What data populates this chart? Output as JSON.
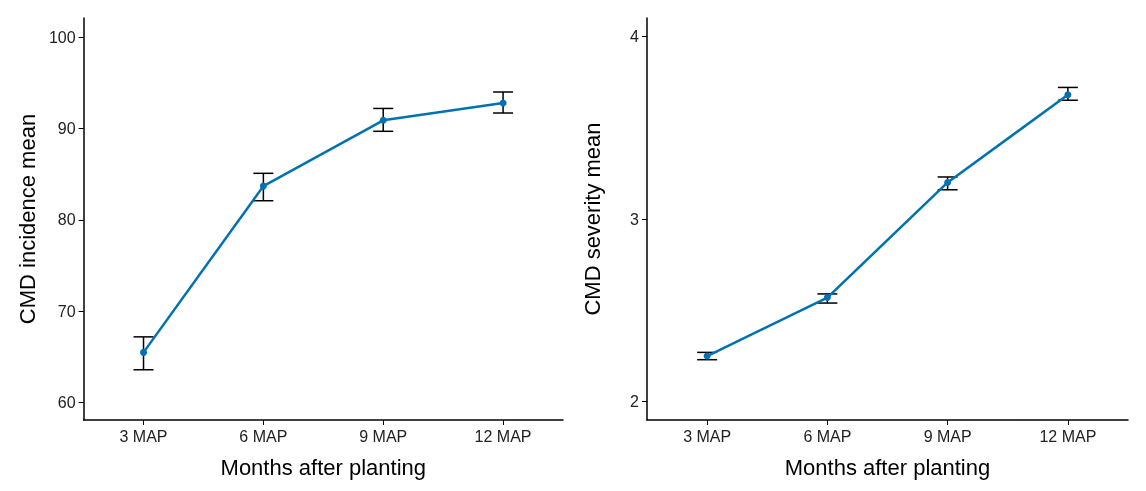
{
  "chart_data": [
    {
      "type": "line",
      "xlabel": "Months after planting",
      "ylabel": "CMD incidence mean",
      "categories": [
        "3 MAP",
        "6 MAP",
        "9 MAP",
        "12 MAP"
      ],
      "series": [
        {
          "color": "#0072b2",
          "values": [
            65.5,
            83.7,
            90.9,
            92.8
          ],
          "errors": [
            [
              63.6,
              67.2
            ],
            [
              82.1,
              85.1
            ],
            [
              89.7,
              92.2
            ],
            [
              91.7,
              94.0
            ]
          ]
        }
      ],
      "ylim": [
        58.1,
        102.1
      ],
      "yticks": [
        60,
        70,
        80,
        90,
        100
      ],
      "grid": false,
      "marker": "circle",
      "line_style": "solid"
    },
    {
      "type": "line",
      "xlabel": "Months after planting",
      "ylabel": "CMD severity mean",
      "categories": [
        "3 MAP",
        "6 MAP",
        "9 MAP",
        "12 MAP"
      ],
      "series": [
        {
          "color": "#0072b2",
          "values": [
            2.25,
            2.57,
            3.2,
            3.68
          ],
          "errors": [
            [
              2.23,
              2.27
            ],
            [
              2.54,
              2.59
            ],
            [
              3.16,
              3.23
            ],
            [
              3.65,
              3.72
            ]
          ]
        }
      ],
      "ylim": [
        1.9,
        4.1
      ],
      "yticks": [
        2,
        3,
        4
      ],
      "grid": false,
      "marker": "circle",
      "line_style": "solid"
    }
  ]
}
